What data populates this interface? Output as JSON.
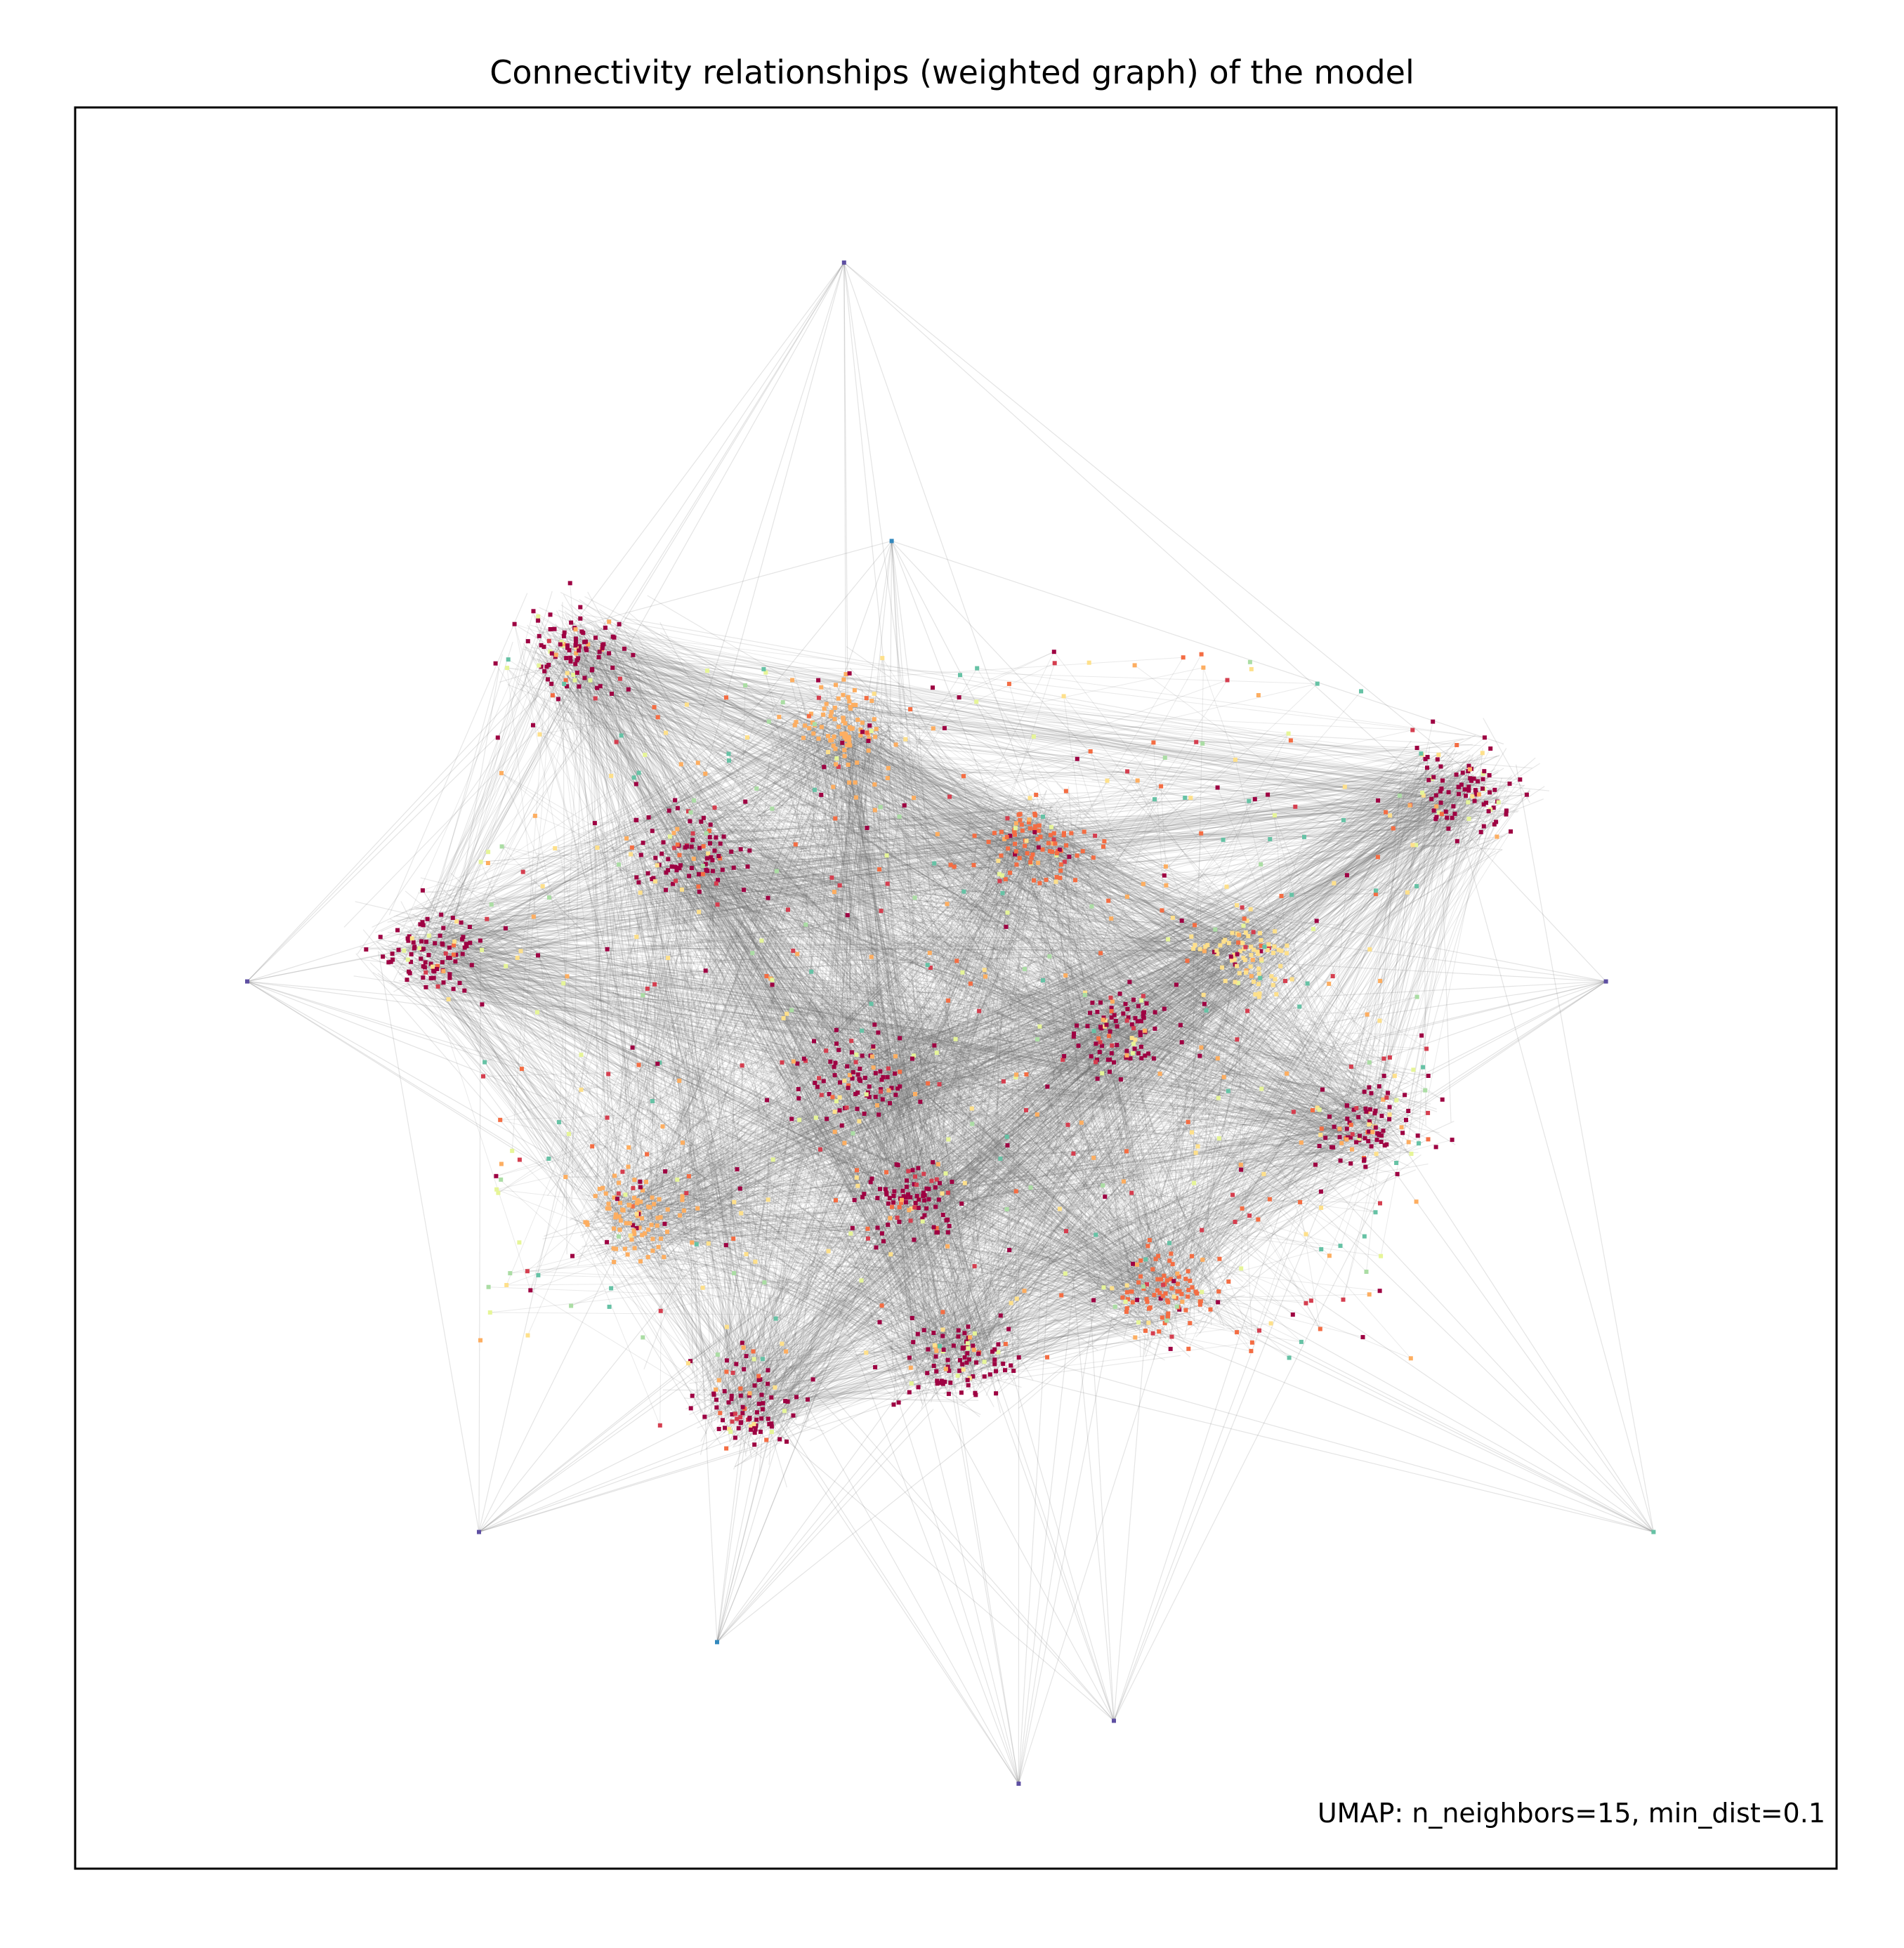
{
  "chart_data": {
    "type": "graph",
    "title": "Connectivity relationships (weighted graph) of the model",
    "annotation": "UMAP: n_neighbors=15, min_dist=0.1",
    "xlabel": "",
    "ylabel": "",
    "xticks": [],
    "yticks": [],
    "grid": false,
    "legend": false,
    "edge_color": "#6b6b6b",
    "node_colormap": [
      "#9e0142",
      "#d53e4f",
      "#f46d43",
      "#fdae61",
      "#fee08b",
      "#e6f598",
      "#abdda4",
      "#66c2a5",
      "#3288bd",
      "#5e4fa2"
    ],
    "clusters": [
      {
        "x": 0.47,
        "y": 0.63,
        "color": "#9e0142"
      },
      {
        "x": 0.44,
        "y": 0.55,
        "color": "#9e0142"
      },
      {
        "x": 0.33,
        "y": 0.41,
        "color": "#9e0142"
      },
      {
        "x": 0.6,
        "y": 0.52,
        "color": "#9e0142"
      },
      {
        "x": 0.76,
        "y": 0.58,
        "color": "#9e0142"
      },
      {
        "x": 0.82,
        "y": 0.37,
        "color": "#9e0142"
      },
      {
        "x": 0.17,
        "y": 0.47,
        "color": "#9e0142"
      },
      {
        "x": 0.26,
        "y": 0.28,
        "color": "#9e0142"
      },
      {
        "x": 0.5,
        "y": 0.73,
        "color": "#9e0142"
      },
      {
        "x": 0.37,
        "y": 0.76,
        "color": "#9e0142"
      },
      {
        "x": 0.43,
        "y": 0.33,
        "color": "#fdae61"
      },
      {
        "x": 0.55,
        "y": 0.4,
        "color": "#f46d43"
      },
      {
        "x": 0.68,
        "y": 0.47,
        "color": "#fee08b"
      },
      {
        "x": 0.3,
        "y": 0.64,
        "color": "#fdae61"
      },
      {
        "x": 0.63,
        "y": 0.69,
        "color": "#f46d43"
      }
    ],
    "outlier_nodes": [
      {
        "x": 0.43,
        "y": 0.033,
        "color": "#5e4fa2"
      },
      {
        "x": 0.054,
        "y": 0.49,
        "color": "#5e4fa2"
      },
      {
        "x": 0.94,
        "y": 0.84,
        "color": "#66c2a5"
      },
      {
        "x": 0.6,
        "y": 0.96,
        "color": "#5e4fa2"
      },
      {
        "x": 0.91,
        "y": 0.49,
        "color": "#5e4fa2"
      },
      {
        "x": 0.2,
        "y": 0.84,
        "color": "#5e4fa2"
      },
      {
        "x": 0.35,
        "y": 0.91,
        "color": "#3288bd"
      },
      {
        "x": 0.46,
        "y": 0.21,
        "color": "#3288bd"
      },
      {
        "x": 0.54,
        "y": 1.0,
        "color": "#5e4fa2"
      }
    ]
  }
}
